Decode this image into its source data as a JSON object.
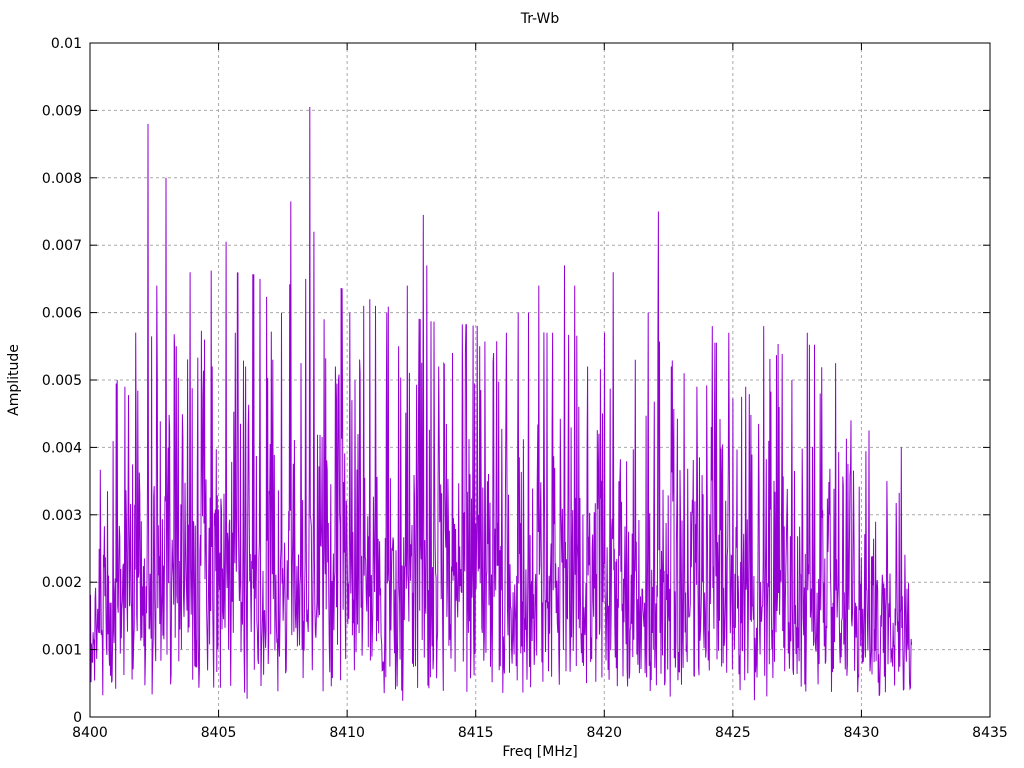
{
  "chart_data": {
    "type": "line",
    "title": "Tr-Wb",
    "xlabel": "Freq [MHz]",
    "ylabel": "Amplitude",
    "xlim": [
      8400,
      8435
    ],
    "ylim": [
      0,
      0.01
    ],
    "x_ticks": [
      8400,
      8405,
      8410,
      8415,
      8420,
      8425,
      8430,
      8435
    ],
    "x_tick_labels": [
      "8400",
      "8405",
      "8410",
      "8415",
      "8420",
      "8425",
      "8430",
      "8435"
    ],
    "y_ticks": [
      0,
      0.001,
      0.002,
      0.003,
      0.004,
      0.005,
      0.006,
      0.007,
      0.008,
      0.009,
      0.01
    ],
    "y_tick_labels": [
      "0",
      "0.001",
      "0.002",
      "0.003",
      "0.004",
      "0.005",
      "0.006",
      "0.007",
      "0.008",
      "0.009",
      "0.01"
    ],
    "grid": true,
    "legend_position": "none",
    "line_color": "#9400d3",
    "grid_color": "#a9a9a9",
    "axis_color": "#000000",
    "background_color": "#ffffff",
    "data_x_range": [
      8400.0,
      8431.95
    ],
    "noise": {
      "seed": 1337,
      "points": 1600,
      "x_start": 8400.02,
      "x_end": 8431.95,
      "floor": 0.0002,
      "scale": 0.00095,
      "cap": 0.006,
      "envelope": [
        [
          8400.0,
          0.5
        ],
        [
          8400.9,
          0.78
        ],
        [
          8401.8,
          1.12
        ],
        [
          8409.0,
          1.08
        ],
        [
          8413.0,
          0.98
        ],
        [
          8421.0,
          0.93
        ],
        [
          8428.5,
          0.92
        ],
        [
          8430.0,
          0.72
        ],
        [
          8431.95,
          0.5
        ]
      ]
    },
    "peaks": [
      [
        8401.05,
        0.005
      ],
      [
        8401.35,
        0.0049
      ],
      [
        8402.25,
        0.0088
      ],
      [
        8402.6,
        0.0064
      ],
      [
        8402.95,
        0.008
      ],
      [
        8403.35,
        0.0055
      ],
      [
        8403.9,
        0.0066
      ],
      [
        8404.45,
        0.0056
      ],
      [
        8404.75,
        0.0052
      ],
      [
        8405.3,
        0.00705
      ],
      [
        8405.65,
        0.0057
      ],
      [
        8406.05,
        0.0052
      ],
      [
        8406.6,
        0.0065
      ],
      [
        8407.1,
        0.0053
      ],
      [
        8407.45,
        0.006
      ],
      [
        8407.8,
        0.00765
      ],
      [
        8408.2,
        0.00525
      ],
      [
        8408.55,
        0.00905
      ],
      [
        8408.7,
        0.0072
      ],
      [
        8409.1,
        0.0059
      ],
      [
        8409.55,
        0.0052
      ],
      [
        8410.1,
        0.006
      ],
      [
        8410.65,
        0.0061
      ],
      [
        8411.1,
        0.0061
      ],
      [
        8411.55,
        0.006
      ],
      [
        8412.0,
        0.0055
      ],
      [
        8412.35,
        0.0064
      ],
      [
        8412.95,
        0.00745
      ],
      [
        8413.1,
        0.0067
      ],
      [
        8413.55,
        0.0052
      ],
      [
        8414.1,
        0.0054
      ],
      [
        8414.6,
        0.0054
      ],
      [
        8415.15,
        0.0055
      ],
      [
        8415.7,
        0.0054
      ],
      [
        8416.2,
        0.0057
      ],
      [
        8416.65,
        0.006
      ],
      [
        8417.05,
        0.006
      ],
      [
        8417.45,
        0.0064
      ],
      [
        8418.0,
        0.0057
      ],
      [
        8418.45,
        0.0067
      ],
      [
        8418.85,
        0.0064
      ],
      [
        8419.35,
        0.0052
      ],
      [
        8420.0,
        0.0057
      ],
      [
        8420.35,
        0.0066
      ],
      [
        8421.2,
        0.0053
      ],
      [
        8421.7,
        0.006
      ],
      [
        8422.1,
        0.0075
      ],
      [
        8422.6,
        0.0052
      ],
      [
        8423.1,
        0.0051
      ],
      [
        8423.6,
        0.0049
      ],
      [
        8424.2,
        0.0058
      ],
      [
        8424.85,
        0.0057
      ],
      [
        8425.5,
        0.0049
      ],
      [
        8426.2,
        0.0058
      ],
      [
        8426.8,
        0.0046
      ],
      [
        8427.3,
        0.005
      ],
      [
        8427.9,
        0.0057
      ],
      [
        8428.4,
        0.0048
      ],
      [
        8429.0,
        0.00525
      ],
      [
        8429.6,
        0.0044
      ],
      [
        8430.3,
        0.00425
      ],
      [
        8431.0,
        0.0035
      ],
      [
        8431.55,
        0.004
      ],
      [
        8431.85,
        0.0013
      ]
    ]
  }
}
